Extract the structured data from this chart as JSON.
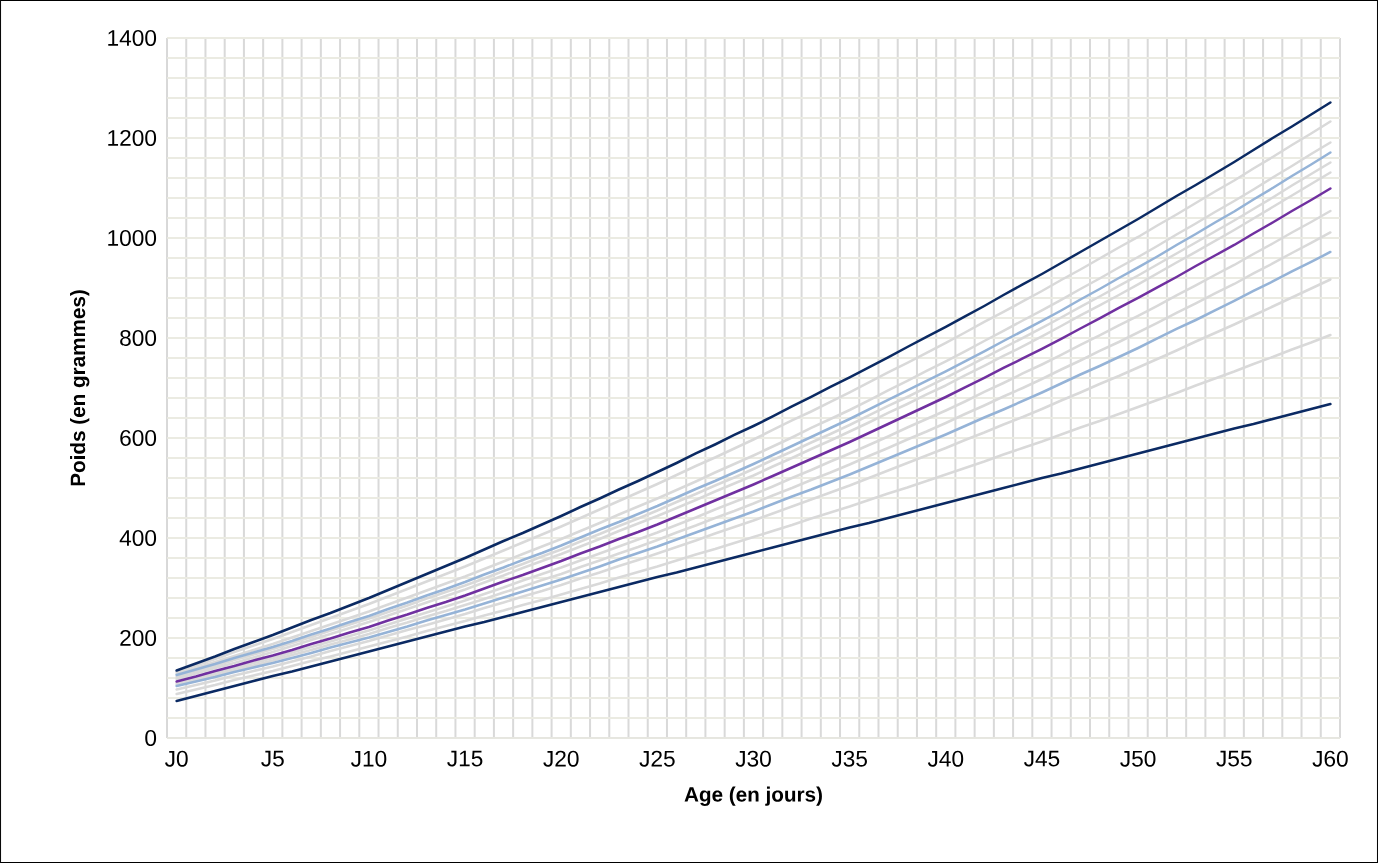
{
  "chart_data": {
    "type": "line",
    "xlabel": "Age (en jours)",
    "ylabel": "Poids (en grammes)",
    "categories": [
      "J0",
      null,
      null,
      null,
      null,
      "J5",
      null,
      null,
      null,
      null,
      "J10",
      null,
      null,
      null,
      null,
      "J15",
      null,
      null,
      null,
      null,
      "J20",
      null,
      null,
      null,
      null,
      "J25",
      null,
      null,
      null,
      null,
      "J30",
      null,
      null,
      null,
      null,
      "J35",
      null,
      null,
      null,
      null,
      "J40",
      null,
      null,
      null,
      null,
      "J45",
      null,
      null,
      null,
      null,
      "J50",
      null,
      null,
      null,
      null,
      "J55",
      null,
      null,
      null,
      null,
      "J60"
    ],
    "ylim": [
      0,
      1400
    ],
    "yticks": [
      0,
      {
        "value": 40,
        "label": null
      },
      {
        "value": 80,
        "label": null
      },
      {
        "value": 120,
        "label": null
      },
      {
        "value": 160,
        "label": null
      },
      200,
      {
        "value": 240,
        "label": null
      },
      {
        "value": 280,
        "label": null
      },
      {
        "value": 320,
        "label": null
      },
      {
        "value": 360,
        "label": null
      },
      400,
      {
        "value": 440,
        "label": null
      },
      {
        "value": 480,
        "label": null
      },
      {
        "value": 520,
        "label": null
      },
      {
        "value": 560,
        "label": null
      },
      600,
      {
        "value": 640,
        "label": null
      },
      {
        "value": 680,
        "label": null
      },
      {
        "value": 720,
        "label": null
      },
      {
        "value": 760,
        "label": null
      },
      800,
      {
        "value": 840,
        "label": null
      },
      {
        "value": 880,
        "label": null
      },
      {
        "value": 920,
        "label": null
      },
      {
        "value": 960,
        "label": null
      },
      1000,
      {
        "value": 1040,
        "label": null
      },
      {
        "value": 1080,
        "label": null
      },
      {
        "value": 1120,
        "label": null
      },
      {
        "value": 1160,
        "label": null
      },
      1200,
      {
        "value": 1240,
        "label": null
      },
      {
        "value": 1280,
        "label": null
      },
      {
        "value": 1320,
        "label": null
      },
      {
        "value": 1360,
        "label": null
      },
      1400
    ],
    "grid": true,
    "marker": "none",
    "line_style": "solid",
    "series": [
      {
        "color": "#d9d9d9",
        "values": [
          132,
          145,
          158,
          172,
          185,
          198,
          212,
          226,
          240,
          254,
          268,
          283,
          298,
          313,
          328,
          343,
          359,
          375,
          391,
          407,
          423,
          440,
          457,
          474,
          491,
          508,
          526,
          544,
          561,
          579,
          597,
          616,
          635,
          653,
          672,
          691,
          711,
          731,
          750,
          770,
          790,
          811,
          832,
          852,
          873,
          894,
          916,
          937,
          959,
          981,
          1002,
          1025,
          1047,
          1070,
          1093,
          1115,
          1139,
          1162,
          1186,
          1209,
          1233
        ]
      },
      {
        "color": "#d9d9d9",
        "values": [
          128,
          140,
          152,
          164,
          176,
          188,
          201,
          214,
          227,
          240,
          253,
          267,
          281,
          295,
          309,
          323,
          338,
          353,
          368,
          383,
          398,
          414,
          430,
          447,
          463,
          479,
          496,
          513,
          531,
          548,
          565,
          583,
          601,
          620,
          638,
          656,
          675,
          695,
          714,
          734,
          753,
          773,
          794,
          814,
          835,
          855,
          876,
          898,
          919,
          941,
          962,
          984,
          1007,
          1029,
          1052,
          1074,
          1097,
          1121,
          1144,
          1168,
          1191
        ]
      },
      {
        "color": "#d9d9d9",
        "values": [
          122,
          133,
          144,
          156,
          167,
          178,
          190,
          202,
          215,
          227,
          239,
          252,
          265,
          279,
          292,
          305,
          319,
          334,
          348,
          363,
          377,
          393,
          408,
          424,
          439,
          455,
          472,
          488,
          505,
          521,
          538,
          556,
          573,
          591,
          608,
          626,
          645,
          664,
          682,
          701,
          720,
          740,
          760,
          780,
          800,
          820,
          841,
          862,
          883,
          904,
          925,
          947,
          969,
          991,
          1013,
          1035,
          1058,
          1081,
          1105,
          1128,
          1151
        ]
      },
      {
        "color": "#d9d9d9",
        "values": [
          118,
          129,
          140,
          150,
          161,
          172,
          184,
          196,
          208,
          220,
          232,
          245,
          258,
          271,
          284,
          297,
          311,
          325,
          340,
          354,
          368,
          383,
          398,
          414,
          429,
          444,
          460,
          476,
          493,
          509,
          525,
          543,
          560,
          578,
          595,
          613,
          631,
          650,
          668,
          687,
          705,
          725,
          744,
          764,
          783,
          803,
          824,
          845,
          865,
          886,
          907,
          929,
          951,
          972,
          994,
          1016,
          1039,
          1062,
          1085,
          1108,
          1131
        ]
      },
      {
        "color": "#d9d9d9",
        "values": [
          110,
          120,
          130,
          140,
          150,
          160,
          171,
          182,
          193,
          204,
          215,
          227,
          239,
          251,
          263,
          275,
          288,
          301,
          315,
          328,
          341,
          355,
          369,
          383,
          397,
          411,
          426,
          441,
          457,
          472,
          487,
          503,
          520,
          536,
          553,
          569,
          586,
          603,
          621,
          638,
          655,
          673,
          692,
          710,
          729,
          747,
          766,
          786,
          805,
          825,
          844,
          864,
          885,
          905,
          926,
          946,
          968,
          989,
          1011,
          1032,
          1054
        ]
      },
      {
        "color": "#d9d9d9",
        "values": [
          107,
          117,
          126,
          136,
          145,
          155,
          166,
          176,
          187,
          197,
          208,
          220,
          231,
          243,
          254,
          266,
          278,
          291,
          303,
          316,
          328,
          342,
          355,
          369,
          382,
          396,
          411,
          425,
          440,
          454,
          469,
          485,
          500,
          516,
          531,
          547,
          564,
          580,
          597,
          613,
          630,
          648,
          665,
          683,
          700,
          718,
          737,
          755,
          774,
          792,
          811,
          830,
          850,
          869,
          889,
          908,
          929,
          949,
          970,
          990,
          1011
        ]
      },
      {
        "color": "#d9d9d9",
        "values": [
          97,
          106,
          115,
          125,
          134,
          143,
          153,
          163,
          174,
          184,
          194,
          205,
          216,
          226,
          237,
          248,
          260,
          271,
          283,
          294,
          306,
          319,
          331,
          344,
          356,
          369,
          382,
          395,
          409,
          422,
          435,
          449,
          463,
          477,
          491,
          505,
          520,
          535,
          550,
          565,
          580,
          596,
          611,
          627,
          642,
          658,
          675,
          691,
          708,
          724,
          741,
          758,
          775,
          793,
          810,
          827,
          845,
          863,
          881,
          899,
          917
        ]
      },
      {
        "color": "#d9d9d9",
        "values": [
          88,
          97,
          106,
          116,
          125,
          134,
          144,
          154,
          163,
          173,
          183,
          193,
          203,
          214,
          224,
          234,
          245,
          255,
          266,
          276,
          287,
          298,
          309,
          321,
          332,
          343,
          355,
          367,
          378,
          390,
          402,
          414,
          426,
          439,
          451,
          463,
          476,
          489,
          501,
          514,
          527,
          540,
          553,
          567,
          580,
          593,
          607,
          621,
          634,
          648,
          662,
          676,
          690,
          705,
          719,
          733,
          748,
          762,
          777,
          791,
          806
        ]
      },
      {
        "color": "#95b3d7",
        "values": [
          126,
          137,
          148,
          160,
          171,
          182,
          194,
          207,
          219,
          232,
          244,
          258,
          271,
          285,
          298,
          312,
          327,
          341,
          356,
          370,
          385,
          401,
          417,
          432,
          448,
          464,
          481,
          498,
          514,
          531,
          548,
          566,
          584,
          602,
          620,
          638,
          657,
          676,
          695,
          714,
          733,
          753,
          773,
          794,
          814,
          834,
          855,
          877,
          898,
          920,
          941,
          963,
          986,
          1008,
          1031,
          1053,
          1077,
          1100,
          1124,
          1147,
          1171
        ]
      },
      {
        "color": "#95b3d7",
        "values": [
          104,
          113,
          122,
          132,
          141,
          150,
          160,
          170,
          181,
          191,
          201,
          212,
          223,
          235,
          246,
          257,
          269,
          281,
          293,
          305,
          317,
          330,
          343,
          357,
          370,
          383,
          397,
          411,
          425,
          439,
          453,
          468,
          483,
          497,
          512,
          527,
          543,
          559,
          575,
          591,
          607,
          624,
          641,
          657,
          674,
          691,
          709,
          727,
          744,
          762,
          780,
          799,
          818,
          836,
          855,
          874,
          894,
          913,
          933,
          952,
          972
        ]
      },
      {
        "color": "#7030a0",
        "values": [
          113,
          123,
          134,
          144,
          155,
          165,
          176,
          188,
          199,
          211,
          222,
          235,
          247,
          260,
          272,
          285,
          299,
          313,
          326,
          340,
          354,
          369,
          383,
          398,
          412,
          427,
          443,
          459,
          475,
          491,
          507,
          524,
          541,
          558,
          575,
          592,
          610,
          628,
          646,
          664,
          682,
          701,
          720,
          740,
          759,
          778,
          798,
          819,
          839,
          860,
          880,
          901,
          922,
          944,
          965,
          986,
          1009,
          1031,
          1054,
          1076,
          1099
        ]
      },
      {
        "color": "#0b2a63",
        "values": [
          135,
          149,
          163,
          178,
          192,
          206,
          221,
          236,
          250,
          265,
          280,
          296,
          312,
          328,
          344,
          360,
          377,
          394,
          410,
          427,
          444,
          462,
          479,
          497,
          514,
          532,
          550,
          569,
          587,
          606,
          624,
          643,
          663,
          682,
          702,
          721,
          741,
          761,
          782,
          802,
          822,
          843,
          864,
          886,
          907,
          928,
          950,
          972,
          994,
          1016,
          1038,
          1061,
          1084,
          1106,
          1129,
          1152,
          1176,
          1200,
          1223,
          1247,
          1271
        ]
      },
      {
        "color": "#0b2a63",
        "values": [
          74,
          84,
          94,
          104,
          114,
          124,
          133,
          143,
          153,
          163,
          173,
          183,
          193,
          203,
          213,
          223,
          232,
          242,
          252,
          262,
          272,
          282,
          292,
          302,
          312,
          322,
          331,
          341,
          351,
          361,
          371,
          381,
          391,
          401,
          411,
          421,
          430,
          440,
          450,
          460,
          470,
          480,
          490,
          500,
          510,
          520,
          529,
          539,
          549,
          559,
          569,
          579,
          589,
          599,
          609,
          619,
          628,
          638,
          648,
          658,
          668
        ]
      }
    ]
  }
}
